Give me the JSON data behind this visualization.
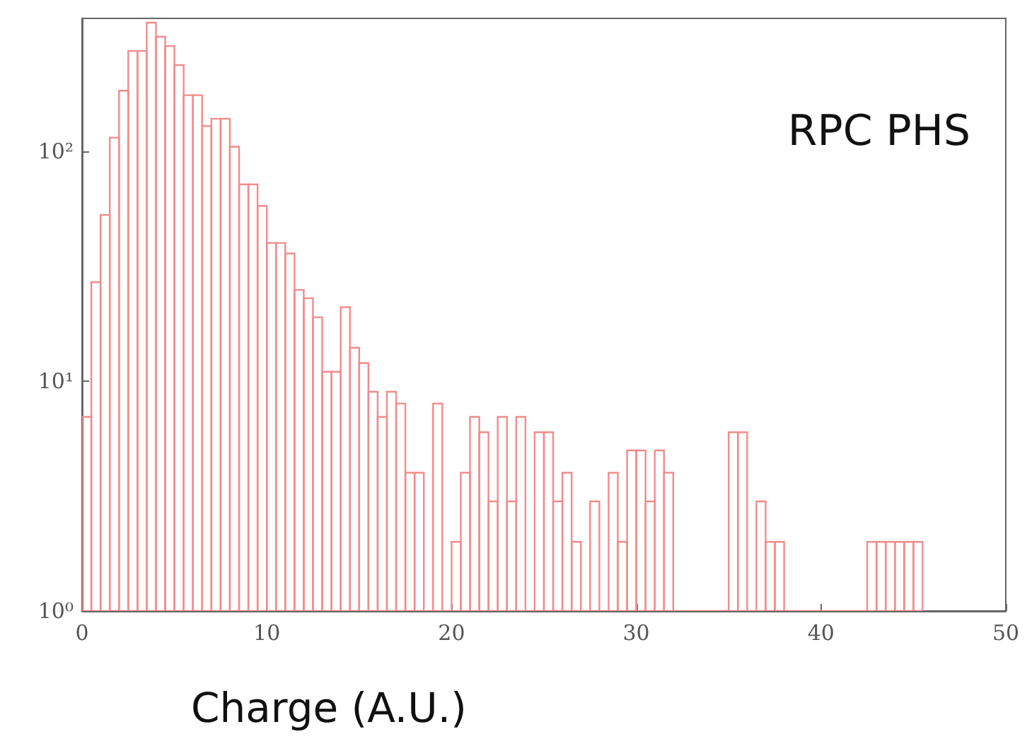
{
  "chart_data": {
    "type": "histogram",
    "xlabel": "Charge (A.U.)",
    "annotations": [
      "RPC PHS"
    ],
    "color": "#f28b8b",
    "log": "y",
    "bins": [
      0,
      0.5,
      1,
      1.5,
      2,
      2.5,
      3,
      3.5,
      4,
      4.5,
      5,
      5.5,
      6,
      6.5,
      7,
      7.5,
      8,
      8.5,
      9,
      9.5,
      10,
      10.5,
      11,
      11.5,
      12,
      12.5,
      13,
      13.5,
      14,
      14.5,
      15,
      15.5,
      16,
      16.5,
      17,
      17.5,
      18,
      18.5,
      19,
      19.5,
      20,
      20.5,
      21,
      21.5,
      22,
      22.5,
      23,
      23.5,
      24,
      24.5,
      25,
      25.5,
      26,
      26.5,
      27,
      27.5,
      28,
      28.5,
      29,
      29.5,
      30,
      30.5,
      31,
      31.5,
      32,
      32.5,
      33,
      33.5,
      34,
      34.5,
      35,
      35.5,
      36,
      36.5,
      37,
      37.5,
      38,
      38.5,
      39,
      39.5,
      40,
      40.5,
      41,
      41.5,
      42,
      42.5,
      43,
      43.5,
      44,
      44.5,
      45,
      45.5
    ],
    "values": [
      7,
      27,
      53,
      115,
      184,
      274,
      274,
      364,
      316,
      288,
      238,
      176,
      176,
      129,
      139,
      139,
      105,
      72,
      72,
      58,
      40,
      40,
      36,
      25,
      23,
      19,
      11,
      11,
      21,
      14,
      12,
      9,
      7,
      9,
      8,
      4,
      4,
      1,
      8,
      1,
      2,
      4,
      7,
      6,
      3,
      7,
      3,
      7,
      1,
      6,
      6,
      3,
      4,
      2,
      1,
      3,
      1,
      4,
      2,
      5,
      5,
      3,
      5,
      4,
      1,
      1,
      1,
      1,
      1,
      1,
      6,
      6,
      1,
      3,
      2,
      2,
      1,
      1,
      1,
      1,
      1,
      1,
      1,
      1,
      1,
      2,
      2,
      2,
      2,
      2,
      2
    ],
    "xlim": [
      0,
      50
    ],
    "xticks": [
      0,
      10,
      20,
      30,
      40,
      50
    ],
    "ylim": [
      1,
      380
    ],
    "yticks": [
      {
        "value": 1,
        "label": "10⁰"
      },
      {
        "value": 10,
        "label": "10¹"
      },
      {
        "value": 100,
        "label": "10²"
      }
    ]
  }
}
